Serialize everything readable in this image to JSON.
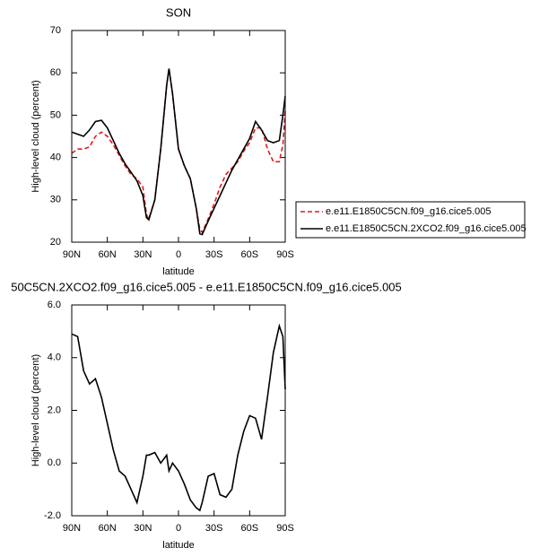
{
  "chart_data": [
    {
      "type": "line",
      "title": "SON",
      "y_label": "High-level cloud (percent)",
      "x_label": "latitude",
      "x": [
        90,
        85,
        80,
        75,
        70,
        65,
        60,
        55,
        50,
        45,
        40,
        35,
        30,
        27,
        25,
        20,
        15,
        10,
        8,
        5,
        0,
        -5,
        -10,
        -15,
        -18,
        -20,
        -25,
        -30,
        -35,
        -40,
        -45,
        -50,
        -55,
        -60,
        -65,
        -70,
        -75,
        -80,
        -85,
        -88,
        -90
      ],
      "series": [
        {
          "name": "e.e11.E1850C5CN.f09_g16.cice5.005",
          "color": "#e41a1c",
          "dash": true,
          "values": [
            41,
            42,
            42,
            42.5,
            45,
            46,
            45,
            43,
            40.5,
            38,
            36,
            35,
            33,
            26.5,
            25.5,
            30,
            42,
            57,
            61,
            55,
            42,
            38,
            35,
            28,
            23,
            22.3,
            25.5,
            29,
            33,
            36,
            37.5,
            39,
            41.5,
            43.5,
            47,
            47,
            42,
            39,
            39,
            43,
            51
          ]
        },
        {
          "name": "e.e11.E1850C5CN.2XCO2.f09_g16.cice5.005",
          "color": "#000000",
          "dash": false,
          "values": [
            46,
            45.5,
            45,
            46.5,
            48.5,
            48.8,
            47,
            44,
            41,
            38.5,
            36.5,
            34.5,
            31,
            25.8,
            25.3,
            30,
            42,
            57,
            61,
            55,
            42,
            38,
            35,
            28,
            22,
            21.8,
            25,
            28,
            31,
            34,
            37,
            39.5,
            42,
            44.5,
            48.5,
            46.5,
            44,
            43.5,
            44,
            50,
            54.5
          ]
        }
      ],
      "xlim": [
        90,
        -90
      ],
      "xticks": [
        {
          "value": 90,
          "label": "90N"
        },
        {
          "value": 60,
          "label": "60N"
        },
        {
          "value": 30,
          "label": "30N"
        },
        0,
        {
          "value": -30,
          "label": "30S"
        },
        {
          "value": -60,
          "label": "60S"
        },
        {
          "value": -90,
          "label": "90S"
        }
      ],
      "ylim": [
        20,
        70
      ],
      "yticks": [
        20,
        30,
        40,
        50,
        60,
        70
      ],
      "legend": "right"
    },
    {
      "type": "line",
      "title": "50C5CN.2XCO2.f09_g16.cice5.005 - e.e11.E1850C5CN.f09_g16.cice5.005",
      "y_label": "High-level cloud (percent)",
      "x_label": "latitude",
      "x": [
        90,
        85,
        80,
        75,
        70,
        65,
        60,
        55,
        50,
        45,
        40,
        35,
        30,
        27,
        25,
        20,
        15,
        10,
        8,
        5,
        0,
        -5,
        -10,
        -15,
        -18,
        -20,
        -25,
        -30,
        -35,
        -40,
        -45,
        -50,
        -55,
        -60,
        -65,
        -70,
        -75,
        -80,
        -85,
        -88,
        -90
      ],
      "series": [
        {
          "color": "#000000",
          "values": [
            4.9,
            4.8,
            3.5,
            3.0,
            3.2,
            2.5,
            1.5,
            0.5,
            -0.3,
            -0.5,
            -1.0,
            -1.5,
            -0.5,
            0.3,
            0.3,
            0.4,
            0.0,
            0.3,
            -0.3,
            0.0,
            -0.3,
            -0.8,
            -1.4,
            -1.7,
            -1.8,
            -1.5,
            -0.5,
            -0.4,
            -1.2,
            -1.3,
            -1.0,
            0.3,
            1.2,
            1.8,
            1.7,
            0.9,
            2.5,
            4.2,
            5.2,
            4.8,
            2.8
          ]
        }
      ],
      "xlim": [
        90,
        -90
      ],
      "xticks": [
        {
          "value": 90,
          "label": "90N"
        },
        {
          "value": 60,
          "label": "60N"
        },
        {
          "value": 30,
          "label": "30N"
        },
        0,
        {
          "value": -30,
          "label": "30S"
        },
        {
          "value": -60,
          "label": "60S"
        },
        {
          "value": -90,
          "label": "90S"
        }
      ],
      "ylim": [
        -2,
        6
      ],
      "yticks": [
        {
          "value": -2,
          "label": "-2.0"
        },
        {
          "value": 0,
          "label": "0.0"
        },
        {
          "value": 2,
          "label": "2.0"
        },
        {
          "value": 4,
          "label": "4.0"
        },
        {
          "value": 6,
          "label": "6.0"
        }
      ]
    }
  ]
}
